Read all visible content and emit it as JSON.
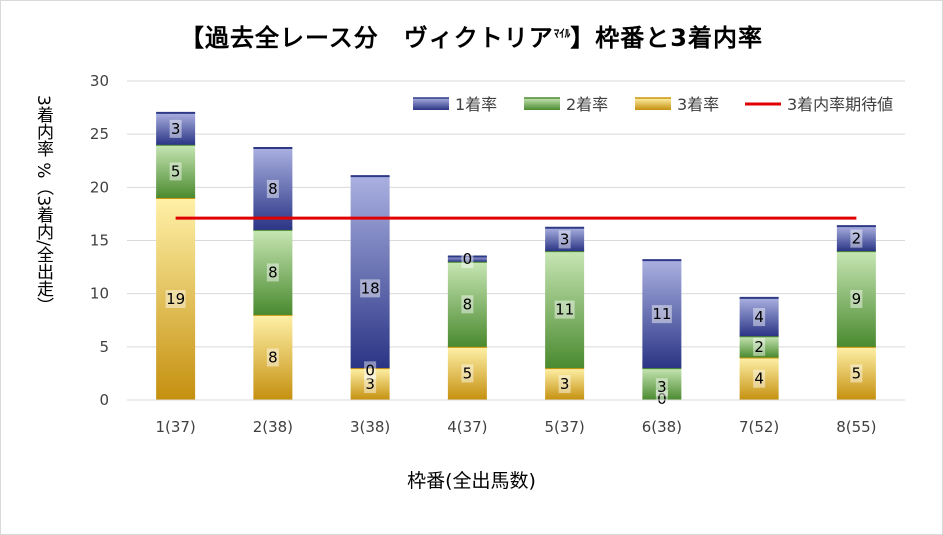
{
  "chart_data": {
    "type": "bar",
    "stacked": true,
    "title_main": "【過去全レース分　ヴィクトリア",
    "title_small": "ﾏｲﾙ",
    "title_end": "】枠番と3着内率",
    "xlabel": "枠番(全出馬数)",
    "ylabel": "3着内率 %（3着内/全出走）",
    "categories": [
      "1(37)",
      "2(38)",
      "3(38)",
      "4(37)",
      "5(37)",
      "6(38)",
      "7(52)",
      "8(55)"
    ],
    "ylim": [
      0,
      30
    ],
    "yticks": [
      "0",
      "5",
      "10",
      "15",
      "20",
      "25",
      "30"
    ],
    "grid": true,
    "legend_position": "top-right",
    "series": [
      {
        "name": "3着率",
        "values": [
          19,
          8,
          3,
          5,
          3,
          0,
          4,
          5
        ],
        "labels": [
          "19",
          "8",
          "3",
          "5",
          "3",
          "0",
          "4",
          "5"
        ],
        "color": "#c9960f"
      },
      {
        "name": "2着率",
        "values": [
          5,
          8,
          0,
          8,
          11,
          3,
          2,
          9
        ],
        "labels": [
          "5",
          "8",
          "0",
          "8",
          "11",
          "3",
          "2",
          "9"
        ],
        "color": "#4d8a33"
      },
      {
        "name": "1着率",
        "values": [
          3,
          8,
          18,
          0,
          3,
          11,
          4,
          2
        ],
        "labels": [
          "3",
          "8",
          "18",
          "0",
          "3",
          "11",
          "4",
          "2"
        ],
        "color": "#2e3a86"
      }
    ],
    "stack_tops": [
      27.0,
      23.7,
      21.05,
      13.5,
      16.2,
      13.15,
      9.6,
      16.35
    ],
    "reference_line": {
      "name": "3着内率期待値",
      "value": 17.1,
      "color": "#e00000"
    }
  }
}
